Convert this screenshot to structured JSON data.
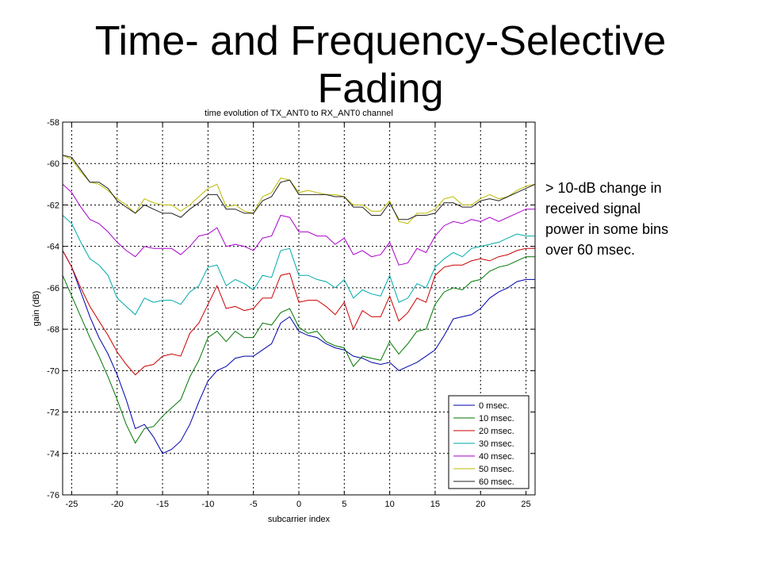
{
  "slide": {
    "title_line1": "Time- and Frequency-Selective",
    "title_line2": "Fading",
    "note_lines": [
      "> 10-dB change in",
      "received signal",
      "power in some bins",
      "over 60 msec."
    ]
  },
  "chart_data": {
    "type": "line",
    "title": "time evolution of TX_ANT0 to RX_ANT0 channel",
    "xlabel": "subcarrier index",
    "ylabel": "gain (dB)",
    "xlim": [
      -26,
      26
    ],
    "ylim": [
      -76,
      -58
    ],
    "xticks": [
      -25,
      -20,
      -15,
      -10,
      -5,
      0,
      5,
      10,
      15,
      20,
      25
    ],
    "yticks": [
      -58,
      -60,
      -62,
      -64,
      -66,
      -68,
      -70,
      -72,
      -74,
      -76
    ],
    "grid": true,
    "legend_position": "bottom-right",
    "x": [
      -26,
      -25,
      -24,
      -23,
      -22,
      -21,
      -20,
      -19,
      -18,
      -17,
      -16,
      -15,
      -14,
      -13,
      -12,
      -11,
      -10,
      -9,
      -8,
      -7,
      -6,
      -5,
      -4,
      -3,
      -2,
      -1,
      0,
      1,
      2,
      3,
      4,
      5,
      6,
      7,
      8,
      9,
      10,
      11,
      12,
      13,
      14,
      15,
      16,
      17,
      18,
      19,
      20,
      21,
      22,
      23,
      24,
      25,
      26
    ],
    "series": [
      {
        "name": "0 msec.",
        "color": "#0000aa",
        "values": [
          -64.2,
          -65.0,
          -66.2,
          -67.4,
          -68.4,
          -69.2,
          -70.2,
          -71.4,
          -72.8,
          -72.6,
          -73.2,
          -74.0,
          -73.8,
          -73.4,
          -72.6,
          -71.5,
          -70.5,
          -70.0,
          -69.8,
          -69.4,
          -69.3,
          -69.3,
          -69.0,
          -68.7,
          -67.7,
          -67.4,
          -68.1,
          -68.3,
          -68.4,
          -68.7,
          -68.9,
          -69.0,
          -69.3,
          -69.4,
          -69.6,
          -69.7,
          -69.6,
          -70.0,
          -69.8,
          -69.6,
          -69.3,
          -69.0,
          -68.3,
          -67.5,
          -67.4,
          -67.3,
          -67.0,
          -66.5,
          -66.2,
          -66.0,
          -65.7,
          -65.6,
          -65.6
        ]
      },
      {
        "name": "10 msec.",
        "color": "#007700",
        "values": [
          -65.4,
          -66.4,
          -67.4,
          -68.4,
          -69.3,
          -70.3,
          -71.4,
          -72.6,
          -73.5,
          -72.8,
          -72.7,
          -72.2,
          -71.8,
          -71.4,
          -70.3,
          -69.5,
          -68.4,
          -68.1,
          -68.6,
          -68.1,
          -68.4,
          -68.4,
          -67.7,
          -67.8,
          -67.2,
          -67.0,
          -67.9,
          -68.2,
          -68.1,
          -68.6,
          -68.8,
          -68.9,
          -69.8,
          -69.3,
          -69.4,
          -69.5,
          -68.6,
          -69.2,
          -68.7,
          -68.1,
          -68.0,
          -66.8,
          -66.2,
          -66.0,
          -66.1,
          -65.7,
          -65.6,
          -65.2,
          -65.0,
          -64.9,
          -64.7,
          -64.5,
          -64.5
        ]
      },
      {
        "name": "20 msec.",
        "color": "#cc0000",
        "values": [
          -64.2,
          -65.0,
          -66.0,
          -66.9,
          -67.6,
          -68.3,
          -69.1,
          -69.7,
          -70.2,
          -69.8,
          -69.7,
          -69.3,
          -69.2,
          -69.3,
          -68.2,
          -67.7,
          -66.8,
          -65.9,
          -67.0,
          -66.9,
          -67.1,
          -67.0,
          -66.5,
          -66.5,
          -65.4,
          -65.3,
          -66.7,
          -66.6,
          -66.6,
          -66.9,
          -67.3,
          -66.7,
          -68.0,
          -67.1,
          -67.4,
          -67.4,
          -66.4,
          -67.6,
          -67.2,
          -66.5,
          -66.7,
          -65.4,
          -65.0,
          -64.9,
          -64.9,
          -64.7,
          -64.6,
          -64.7,
          -64.5,
          -64.4,
          -64.2,
          -64.1,
          -64.1
        ]
      },
      {
        "name": "30 msec.",
        "color": "#00aaaa",
        "values": [
          -62.5,
          -62.9,
          -63.8,
          -64.6,
          -64.9,
          -65.4,
          -66.5,
          -66.9,
          -67.3,
          -66.5,
          -66.7,
          -66.6,
          -66.6,
          -66.8,
          -66.2,
          -65.9,
          -65.0,
          -64.9,
          -65.9,
          -65.6,
          -65.8,
          -66.1,
          -65.4,
          -65.5,
          -64.2,
          -64.1,
          -65.4,
          -65.4,
          -65.6,
          -65.7,
          -66.0,
          -65.6,
          -66.5,
          -66.1,
          -66.3,
          -66.4,
          -65.4,
          -66.7,
          -66.5,
          -65.8,
          -66.0,
          -65.0,
          -64.6,
          -64.3,
          -64.5,
          -64.1,
          -64.0,
          -63.9,
          -63.8,
          -63.6,
          -63.4,
          -63.5,
          -63.5
        ]
      },
      {
        "name": "40 msec.",
        "color": "#aa00cc",
        "values": [
          -61.0,
          -61.4,
          -62.1,
          -62.7,
          -62.9,
          -63.3,
          -63.8,
          -64.2,
          -64.5,
          -64.0,
          -64.1,
          -64.1,
          -64.1,
          -64.4,
          -64.0,
          -63.5,
          -63.4,
          -63.1,
          -64.0,
          -63.9,
          -64.0,
          -64.2,
          -63.6,
          -63.5,
          -62.5,
          -62.6,
          -63.3,
          -63.3,
          -63.5,
          -63.5,
          -63.9,
          -63.6,
          -64.4,
          -64.2,
          -64.5,
          -64.4,
          -63.8,
          -64.9,
          -64.8,
          -64.1,
          -64.3,
          -63.5,
          -63.0,
          -62.8,
          -62.9,
          -62.7,
          -62.8,
          -62.6,
          -62.8,
          -62.6,
          -62.4,
          -62.2,
          -62.2
        ]
      },
      {
        "name": "50 msec.",
        "color": "#bbbb00",
        "values": [
          -59.6,
          -59.8,
          -60.4,
          -60.9,
          -61.0,
          -61.3,
          -61.7,
          -62.0,
          -62.4,
          -61.7,
          -61.9,
          -62.0,
          -62.0,
          -62.3,
          -62.0,
          -61.6,
          -61.2,
          -61.0,
          -62.1,
          -62.0,
          -62.3,
          -62.4,
          -61.6,
          -61.4,
          -60.7,
          -60.8,
          -61.4,
          -61.3,
          -61.4,
          -61.5,
          -61.5,
          -61.6,
          -62.0,
          -62.0,
          -62.3,
          -62.3,
          -61.8,
          -62.8,
          -62.9,
          -62.4,
          -62.4,
          -62.2,
          -61.7,
          -61.6,
          -62.0,
          -62.0,
          -61.7,
          -61.5,
          -61.7,
          -61.6,
          -61.3,
          -61.1,
          -61.0
        ]
      },
      {
        "name": "60 msec.",
        "color": "#222222",
        "values": [
          -59.6,
          -59.7,
          -60.3,
          -60.9,
          -60.9,
          -61.2,
          -61.8,
          -62.1,
          -62.4,
          -62.0,
          -62.2,
          -62.4,
          -62.4,
          -62.6,
          -62.2,
          -61.9,
          -61.5,
          -61.5,
          -62.2,
          -62.2,
          -62.4,
          -62.4,
          -61.8,
          -61.6,
          -60.9,
          -60.8,
          -61.5,
          -61.5,
          -61.5,
          -61.5,
          -61.6,
          -61.6,
          -62.1,
          -62.1,
          -62.5,
          -62.5,
          -61.9,
          -62.7,
          -62.7,
          -62.5,
          -62.5,
          -62.4,
          -61.9,
          -61.9,
          -62.1,
          -62.1,
          -61.8,
          -61.7,
          -61.8,
          -61.6,
          -61.4,
          -61.2,
          -61.0
        ]
      }
    ]
  }
}
